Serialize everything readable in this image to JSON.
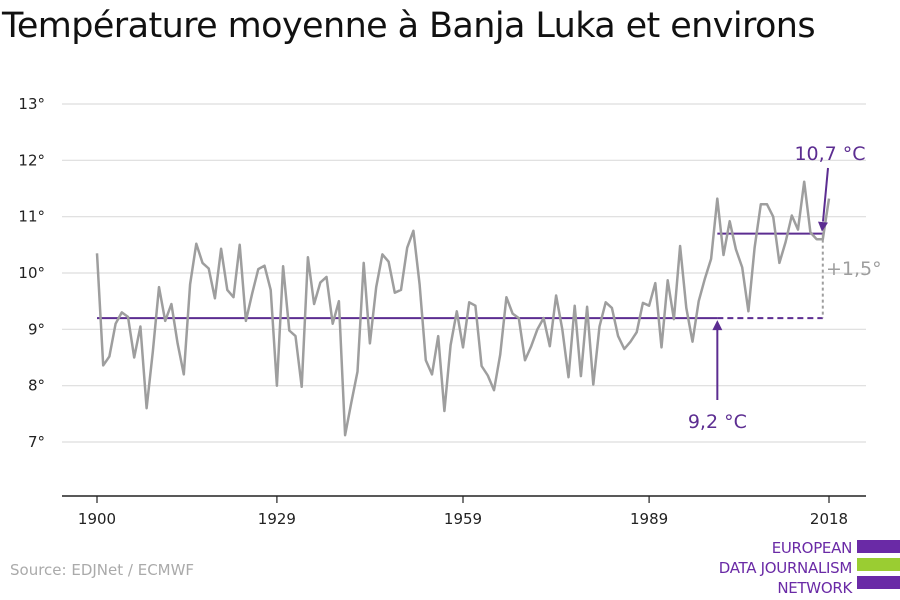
{
  "title": "Température moyenne à Banja Luka et environs",
  "source": "Source: EDJNet / ECMWF",
  "logo": {
    "lines": [
      "EUROPEAN",
      "DATA JOURNALISM",
      "NETWORK"
    ],
    "colors": {
      "purple": "#6a2aa6",
      "green": "#9acd32"
    }
  },
  "colors": {
    "series": "#9e9e9e",
    "baseline": "#5c2d91",
    "grid": "#dddddd",
    "axis": "#222222"
  },
  "chart_data": {
    "type": "line",
    "xlim": [
      1900,
      2018
    ],
    "ylim": [
      7,
      13
    ],
    "x_ticks": [
      1900,
      1929,
      1959,
      1989,
      2018
    ],
    "x_tick_labels": [
      "1900",
      "1929",
      "1959",
      "1989",
      "2018"
    ],
    "y_ticks": [
      7,
      8,
      9,
      10,
      11,
      12,
      13
    ],
    "y_tick_labels": [
      "7°",
      "8°",
      "9°",
      "10°",
      "11°",
      "12°",
      "13°"
    ],
    "grid": true,
    "series": [
      {
        "x_start": 1900,
        "values": [
          10.35,
          8.36,
          8.52,
          9.1,
          9.3,
          9.22,
          8.5,
          9.05,
          7.6,
          8.6,
          9.75,
          9.15,
          9.45,
          8.75,
          8.2,
          9.8,
          10.52,
          10.18,
          10.08,
          9.55,
          10.43,
          9.7,
          9.57,
          10.5,
          9.15,
          9.63,
          10.07,
          10.13,
          9.7,
          8.0,
          10.12,
          8.98,
          8.88,
          7.98,
          10.28,
          9.45,
          9.83,
          9.93,
          9.1,
          9.5,
          7.12,
          7.7,
          8.25,
          10.18,
          8.75,
          9.75,
          10.33,
          10.2,
          9.65,
          9.7,
          10.45,
          10.75,
          9.8,
          8.45,
          8.2,
          8.88,
          7.55,
          8.72,
          9.32,
          8.68,
          9.48,
          9.42,
          8.35,
          8.18,
          7.92,
          8.55,
          9.57,
          9.28,
          9.2,
          8.45,
          8.7,
          9.0,
          9.2,
          8.7,
          9.6,
          9.0,
          8.15,
          9.42,
          8.17,
          9.4,
          8.02,
          9.05,
          9.48,
          9.38,
          8.88,
          8.65,
          8.78,
          8.95,
          9.47,
          9.42,
          9.82,
          8.68,
          9.87,
          9.18,
          10.48,
          9.38,
          8.78,
          9.5,
          9.9,
          10.25,
          11.32,
          10.32,
          10.92,
          10.42,
          10.1,
          9.32,
          10.45,
          11.22,
          11.22,
          11.0,
          10.18,
          10.55,
          11.02,
          10.77,
          11.62,
          10.72,
          10.6,
          10.6,
          11.32
        ]
      }
    ],
    "baseline": {
      "value": 9.2,
      "from": 1900,
      "solid_to": 2000,
      "dashed_to": 2017,
      "label": "9,2 °C"
    },
    "recent_mean": {
      "value": 10.7,
      "from": 2000,
      "to": 2017,
      "label": "10,7 °C"
    },
    "difference": {
      "at": 2017,
      "label": "+1,5°"
    }
  }
}
